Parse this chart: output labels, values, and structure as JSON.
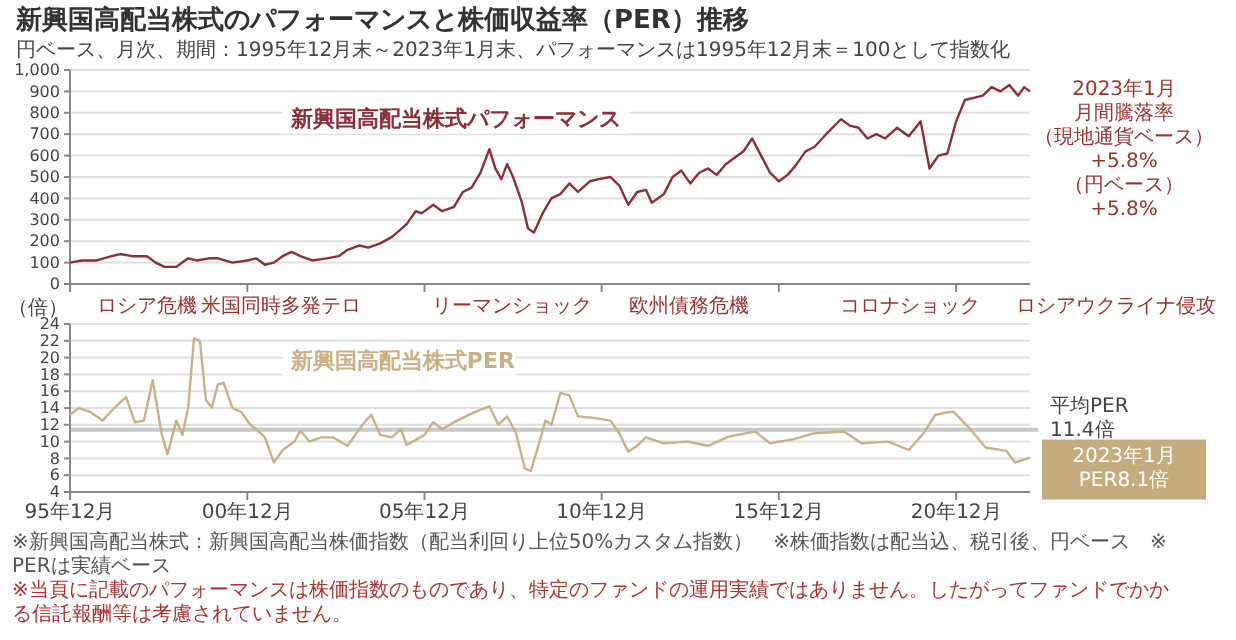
{
  "chart_data": [
    {
      "type": "line",
      "title": "新興国高配当株式のパフォーマンスと株価収益率（PER）推移",
      "subtitle": "円ベース、月次、期間：1995年12月末～2023年1月末、パフォーマンスは1995年12月末＝100として指数化",
      "xlim": [
        "1995-12",
        "2023-01"
      ],
      "xticks": [
        {
          "value": "1995-12",
          "label": null
        },
        {
          "value": "2000-12",
          "label": null
        },
        {
          "value": "2005-12",
          "label": null
        },
        {
          "value": "2010-12",
          "label": null
        },
        {
          "value": "2015-12",
          "label": null
        },
        {
          "value": "2020-12",
          "label": null
        }
      ],
      "ylim": [
        0,
        1000
      ],
      "yticks": [
        0,
        100,
        200,
        300,
        400,
        500,
        600,
        700,
        800,
        900,
        {
          "value": 1000,
          "label": "1,000"
        }
      ],
      "grid": "y",
      "tick_labels": "y",
      "series": [
        {
          "name": "新興国高配当株式パフォーマンス",
          "color": "#8c2f39",
          "x": [
            "1995-12",
            "1996-04",
            "1996-09",
            "1997-02",
            "1997-05",
            "1997-09",
            "1998-02",
            "1998-05",
            "1998-08",
            "1998-12",
            "1999-04",
            "1999-07",
            "1999-11",
            "2000-02",
            "2000-07",
            "2000-12",
            "2001-03",
            "2001-06",
            "2001-09",
            "2001-12",
            "2002-03",
            "2002-06",
            "2002-10",
            "2003-03",
            "2003-07",
            "2003-10",
            "2004-02",
            "2004-05",
            "2004-09",
            "2005-01",
            "2005-06",
            "2005-09",
            "2005-11",
            "2006-03",
            "2006-06",
            "2006-10",
            "2007-01",
            "2007-04",
            "2007-07",
            "2007-10",
            "2007-12",
            "2008-02",
            "2008-04",
            "2008-06",
            "2008-09",
            "2008-11",
            "2009-01",
            "2009-04",
            "2009-07",
            "2009-10",
            "2010-01",
            "2010-04",
            "2010-08",
            "2010-11",
            "2011-03",
            "2011-06",
            "2011-09",
            "2011-12",
            "2012-03",
            "2012-05",
            "2012-09",
            "2012-12",
            "2013-03",
            "2013-06",
            "2013-09",
            "2013-12",
            "2014-03",
            "2014-06",
            "2014-09",
            "2014-12",
            "2015-03",
            "2015-06",
            "2015-09",
            "2015-12",
            "2016-03",
            "2016-06",
            "2016-09",
            "2016-12",
            "2017-04",
            "2017-09",
            "2017-12",
            "2018-03",
            "2018-06",
            "2018-09",
            "2018-12",
            "2019-04",
            "2019-08",
            "2019-12",
            "2020-03",
            "2020-06",
            "2020-09",
            "2020-12",
            "2021-03",
            "2021-06",
            "2021-09",
            "2021-12",
            "2022-03",
            "2022-06",
            "2022-09",
            "2022-11",
            "2023-01"
          ],
          "values": [
            100,
            110,
            110,
            130,
            140,
            130,
            130,
            100,
            80,
            80,
            120,
            110,
            120,
            120,
            100,
            110,
            120,
            90,
            100,
            130,
            150,
            130,
            110,
            120,
            130,
            160,
            180,
            170,
            190,
            220,
            280,
            340,
            330,
            370,
            340,
            360,
            430,
            450,
            520,
            630,
            540,
            490,
            560,
            500,
            380,
            260,
            240,
            330,
            400,
            420,
            470,
            430,
            480,
            490,
            500,
            460,
            370,
            430,
            440,
            380,
            420,
            500,
            530,
            470,
            520,
            540,
            510,
            560,
            590,
            620,
            680,
            600,
            520,
            480,
            510,
            560,
            620,
            640,
            700,
            770,
            740,
            730,
            680,
            700,
            680,
            730,
            690,
            760,
            540,
            600,
            610,
            760,
            860,
            870,
            880,
            920,
            900,
            930,
            880,
            920,
            900
          ]
        }
      ],
      "annotations": [
        {
          "text": "2023年1月月間騰落率（現地通貨ベース）+5.8%（円ベース）+5.8%",
          "x": "2023-01",
          "y": 900
        },
        "ロシア危機",
        "米国同時多発テロ",
        "リーマンショック",
        "欧州債務危機",
        "コロナショック",
        "ロシアウクライナ侵攻"
      ]
    },
    {
      "type": "line",
      "ylabel": "（倍）",
      "xlim": [
        "1995-12",
        "2023-01"
      ],
      "xticks": [
        {
          "value": "1995-12",
          "label": "95年12月"
        },
        {
          "value": "2000-12",
          "label": "00年12月"
        },
        {
          "value": "2005-12",
          "label": "05年12月"
        },
        {
          "value": "2010-12",
          "label": "10年12月"
        },
        {
          "value": "2015-12",
          "label": "15年12月"
        },
        {
          "value": "2020-12",
          "label": "20年12月"
        }
      ],
      "ylim": [
        4,
        24
      ],
      "yticks": [
        4,
        6,
        8,
        10,
        12,
        14,
        16,
        18,
        20,
        22,
        24
      ],
      "grid": "y",
      "series": [
        {
          "name": "新興国高配当株式PER",
          "color": "#c9b185",
          "x": [
            "1995-12",
            "1996-03",
            "1996-07",
            "1996-11",
            "1997-03",
            "1997-07",
            "1997-10",
            "1998-01",
            "1998-04",
            "1998-07",
            "1998-09",
            "1998-12",
            "1999-02",
            "1999-04",
            "1999-06",
            "1999-08",
            "1999-10",
            "1999-12",
            "2000-02",
            "2000-04",
            "2000-07",
            "2000-10",
            "2001-01",
            "2001-03",
            "2001-06",
            "2001-09",
            "2001-12",
            "2002-04",
            "2002-06",
            "2002-09",
            "2003-01",
            "2003-05",
            "2003-10",
            "2004-03",
            "2004-06",
            "2004-09",
            "2005-01",
            "2005-04",
            "2005-06",
            "2005-12",
            "2006-03",
            "2006-06",
            "2006-11",
            "2007-05",
            "2007-10",
            "2008-01",
            "2008-04",
            "2008-07",
            "2008-10",
            "2008-12",
            "2009-03",
            "2009-05",
            "2009-07",
            "2009-10",
            "2010-01",
            "2010-04",
            "2010-10",
            "2011-03",
            "2011-06",
            "2011-09",
            "2011-12",
            "2012-03",
            "2012-09",
            "2013-05",
            "2013-12",
            "2014-07",
            "2015-04",
            "2015-09",
            "2016-05",
            "2016-12",
            "2017-10",
            "2018-04",
            "2019-01",
            "2019-08",
            "2020-01",
            "2020-05",
            "2020-11",
            "2021-04",
            "2021-10",
            "2022-05",
            "2022-08",
            "2023-01"
          ],
          "values": [
            13.2,
            14,
            13.5,
            12.5,
            14,
            15.3,
            12.3,
            12.5,
            17.3,
            11,
            8.5,
            12.5,
            10.8,
            14,
            22.3,
            22,
            15,
            14,
            16.8,
            17,
            14,
            13.5,
            12,
            11.5,
            10.5,
            7.5,
            9,
            10,
            11.3,
            10,
            10.5,
            10.5,
            9.5,
            12,
            13.2,
            10.8,
            10.5,
            11.5,
            9.6,
            10.8,
            12.3,
            11.5,
            12.5,
            13.5,
            14.2,
            12,
            13,
            11,
            6.8,
            6.5,
            10,
            12.5,
            12,
            15.8,
            15.5,
            13,
            12.8,
            12.5,
            11,
            8.8,
            9.5,
            10.5,
            9.8,
            10,
            9.5,
            10.6,
            11.2,
            9.8,
            10.3,
            11,
            11.2,
            9.8,
            10,
            9,
            11,
            13.2,
            13.6,
            11.8,
            9.3,
            8.9,
            7.5,
            8.1
          ]
        }
      ],
      "ref_lines": [
        {
          "axis": "y",
          "value": 11.4,
          "label": "平均PER11.4倍",
          "color": "#c8c8c8"
        }
      ],
      "annotations": [
        {
          "text": "2023年1月PER8.1倍",
          "x": "2023-01",
          "y": 8.1
        },
        "※新興国高配当株式：新興国高配当株価指数（配当利回り上位50%カスタム指数）　※株価指数は配当込、税引後、円ベース　※PERは実績ベース",
        "※当頁に記載のパフォーマンスは株価指数のものであり、特定のファンドの運用実績ではありません。したがってファンドでかかる信託報酬等は考慮されていません。"
      ]
    }
  ]
}
